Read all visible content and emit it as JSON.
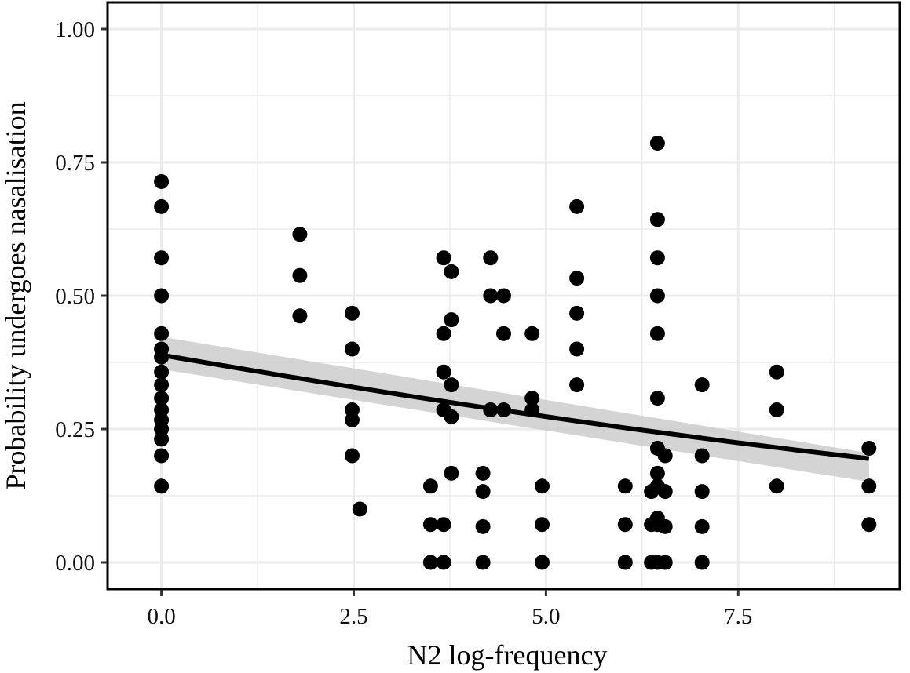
{
  "chart_data": {
    "type": "scatter",
    "title": "",
    "xlabel": "N2 log-frequency",
    "ylabel": "Probability undergoes nasalisation",
    "xlim": [
      -0.7,
      9.6
    ],
    "ylim": [
      -0.05,
      1.05
    ],
    "x_ticks": [
      0.0,
      2.5,
      5.0,
      7.5
    ],
    "x_tick_labels": [
      "0.0",
      "2.5",
      "5.0",
      "7.5"
    ],
    "y_ticks": [
      0.0,
      0.25,
      0.5,
      0.75,
      1.0
    ],
    "y_tick_labels": [
      "0.00",
      "0.25",
      "0.50",
      "0.75",
      "1.00"
    ],
    "grid": true,
    "legend": "none",
    "colors": {
      "points": "#000000",
      "fit_line": "#000000",
      "confidence_band": "#cccccc",
      "grid": "#ebebeb",
      "panel_border": "#000000"
    },
    "series": [
      {
        "type": "scatter",
        "x": [
          0,
          0,
          0,
          0,
          0,
          0,
          0,
          0,
          0,
          0,
          0,
          0,
          0,
          0,
          0,
          0,
          1.8,
          1.8,
          1.8,
          2.48,
          2.48,
          2.48,
          2.48,
          2.48,
          2.58,
          3.5,
          3.5,
          3.5,
          3.67,
          3.67,
          3.67,
          3.67,
          3.67,
          3.67,
          3.77,
          3.77,
          3.77,
          3.77,
          3.77,
          4.18,
          4.18,
          4.18,
          4.18,
          4.28,
          4.28,
          4.28,
          4.45,
          4.45,
          4.45,
          4.82,
          4.82,
          4.82,
          4.95,
          4.95,
          4.95,
          5.4,
          5.4,
          5.4,
          5.4,
          5.4,
          6.03,
          6.03,
          6.03,
          6.37,
          6.37,
          6.37,
          6.45,
          6.45,
          6.45,
          6.45,
          6.45,
          6.45,
          6.45,
          6.45,
          6.45,
          6.45,
          6.45,
          6.45,
          6.55,
          6.55,
          6.55,
          6.55,
          7.03,
          7.03,
          7.03,
          7.03,
          7.03,
          8.0,
          8.0,
          8.0,
          9.2,
          9.2,
          9.2
        ],
        "y": [
          0.714,
          0.667,
          0.571,
          0.5,
          0.429,
          0.4,
          0.385,
          0.357,
          0.333,
          0.308,
          0.286,
          0.267,
          0.25,
          0.231,
          0.2,
          0.143,
          0.615,
          0.538,
          0.462,
          0.467,
          0.4,
          0.286,
          0.267,
          0.2,
          0.1,
          0.143,
          0.071,
          0.0,
          0.571,
          0.429,
          0.357,
          0.286,
          0.071,
          0.0,
          0.545,
          0.455,
          0.333,
          0.273,
          0.167,
          0.167,
          0.133,
          0.067,
          0.0,
          0.571,
          0.5,
          0.286,
          0.5,
          0.429,
          0.286,
          0.429,
          0.308,
          0.286,
          0.143,
          0.071,
          0.0,
          0.667,
          0.533,
          0.467,
          0.4,
          0.333,
          0.143,
          0.071,
          0.0,
          0.133,
          0.071,
          0.0,
          0.786,
          0.643,
          0.571,
          0.5,
          0.429,
          0.308,
          0.214,
          0.167,
          0.143,
          0.083,
          0.071,
          0.0,
          0.2,
          0.133,
          0.067,
          0.0,
          0.333,
          0.2,
          0.133,
          0.067,
          0.0,
          0.357,
          0.286,
          0.143,
          0.214,
          0.143,
          0.071
        ]
      },
      {
        "type": "line",
        "x": [
          0,
          9.2
        ],
        "logit_intercept": -0.452,
        "logit_slope": -0.1052,
        "band_lower_start": 0.362,
        "band_upper_start": 0.423,
        "band_lower_end": 0.151,
        "band_upper_end": 0.205
      }
    ]
  }
}
